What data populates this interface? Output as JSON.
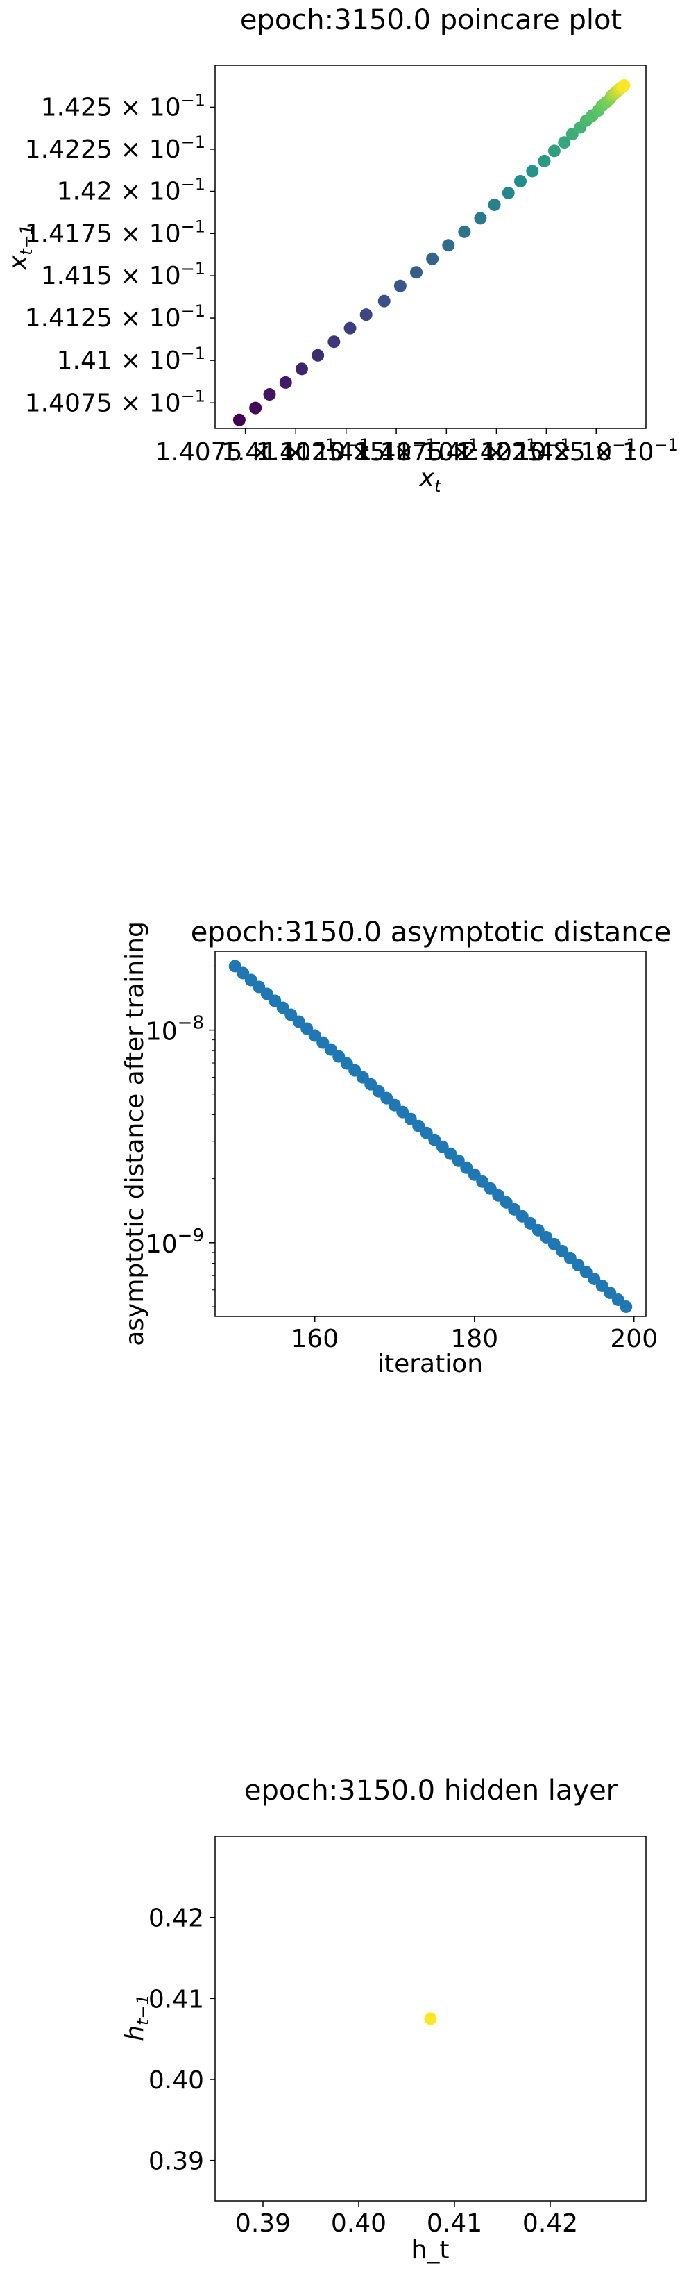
{
  "chart_data": [
    {
      "type": "scatter",
      "title": "epoch:3150.0 poincare plot",
      "xlabel": "x_t",
      "ylabel": "x_t−1",
      "xscale": "log",
      "yscale": "log",
      "colormap": "viridis",
      "xlim": [
        0.1406,
        0.14275
      ],
      "ylim": [
        0.1406,
        0.14275
      ],
      "xticks": [
        {
          "value": 0.14075,
          "mantissa": "1.4075",
          "exp": "−1"
        },
        {
          "value": 0.141,
          "mantissa": "1.41",
          "exp": "−1"
        },
        {
          "value": 0.14125,
          "mantissa": "1.4125",
          "exp": "−1"
        },
        {
          "value": 0.1415,
          "mantissa": "1.415",
          "exp": "−1"
        },
        {
          "value": 0.14175,
          "mantissa": "1.4175",
          "exp": "−1"
        },
        {
          "value": 0.142,
          "mantissa": "1.42",
          "exp": "−1"
        },
        {
          "value": 0.14225,
          "mantissa": "1.4225",
          "exp": "−1"
        },
        {
          "value": 0.1425,
          "mantissa": "1.425",
          "exp": "−1"
        }
      ],
      "yticks": [
        {
          "value": 0.14075,
          "mantissa": "1.4075",
          "exp": "−1"
        },
        {
          "value": 0.141,
          "mantissa": "1.41",
          "exp": "−1"
        },
        {
          "value": 0.14125,
          "mantissa": "1.4125",
          "exp": "−1"
        },
        {
          "value": 0.1415,
          "mantissa": "1.415",
          "exp": "−1"
        },
        {
          "value": 0.14175,
          "mantissa": "1.4175",
          "exp": "−1"
        },
        {
          "value": 0.142,
          "mantissa": "1.42",
          "exp": "−1"
        },
        {
          "value": 0.14225,
          "mantissa": "1.4225",
          "exp": "−1"
        },
        {
          "value": 0.1425,
          "mantissa": "1.425",
          "exp": "−1"
        }
      ],
      "points": {
        "x": [
          0.14072,
          0.1408,
          0.14087,
          0.14095,
          0.14103,
          0.14111,
          0.14119,
          0.14127,
          0.14135,
          0.14144,
          0.14152,
          0.1416,
          0.14168,
          0.14176,
          0.14184,
          0.14192,
          0.14199,
          0.14206,
          0.14212,
          0.14218,
          0.14224,
          0.14229,
          0.14234,
          0.14238,
          0.14242,
          0.14245,
          0.14248,
          0.14251,
          0.14253,
          0.14255,
          0.14257,
          0.14258,
          0.14259,
          0.1426,
          0.14261,
          0.14262,
          0.14263,
          0.14264
        ],
        "y": [
          0.14065,
          0.14072,
          0.1408,
          0.14087,
          0.14095,
          0.14103,
          0.14111,
          0.14119,
          0.14127,
          0.14135,
          0.14144,
          0.14152,
          0.1416,
          0.14168,
          0.14176,
          0.14184,
          0.14192,
          0.14199,
          0.14206,
          0.14212,
          0.14218,
          0.14224,
          0.14229,
          0.14234,
          0.14238,
          0.14242,
          0.14245,
          0.14248,
          0.14251,
          0.14253,
          0.14255,
          0.14257,
          0.14258,
          0.14259,
          0.1426,
          0.14261,
          0.14262,
          0.14263
        ],
        "color_value_range": [
          0,
          1
        ]
      }
    },
    {
      "type": "scatter",
      "title": "epoch:3150.0 asymptotic distance",
      "xlabel": "iteration",
      "ylabel": "asymptotic distance after training",
      "yscale": "log",
      "color": "#1f77b4",
      "xlim": [
        147.5,
        201.5
      ],
      "ylim": [
        4.5e-10,
        2.35e-08
      ],
      "xticks": [
        160,
        180,
        200
      ],
      "yticks": [
        {
          "value": 1e-08,
          "base": "10",
          "exp": "−8"
        },
        {
          "value": 1e-09,
          "base": "10",
          "exp": "−9"
        }
      ],
      "x": [
        150,
        151,
        152,
        153,
        154,
        155,
        156,
        157,
        158,
        159,
        160,
        161,
        162,
        163,
        164,
        165,
        166,
        167,
        168,
        169,
        170,
        171,
        172,
        173,
        174,
        175,
        176,
        177,
        178,
        179,
        180,
        181,
        182,
        183,
        184,
        185,
        186,
        187,
        188,
        189,
        190,
        191,
        192,
        193,
        194,
        195,
        196,
        197,
        198,
        199
      ],
      "y_start": 2e-08,
      "y_end": 5e-10
    },
    {
      "type": "scatter",
      "title": "epoch:3150.0 hidden layer",
      "xlabel": "h_t",
      "ylabel": "h_t−1",
      "color": "#fde725",
      "xlim": [
        0.385,
        0.43
      ],
      "ylim": [
        0.385,
        0.43
      ],
      "xticks": [
        0.39,
        0.4,
        0.41,
        0.42
      ],
      "yticks": [
        0.39,
        0.4,
        0.41,
        0.42
      ],
      "tick_labels": [
        "0.39",
        "0.40",
        "0.41",
        "0.42"
      ],
      "x": [
        0.4075
      ],
      "y": [
        0.4075
      ]
    }
  ]
}
